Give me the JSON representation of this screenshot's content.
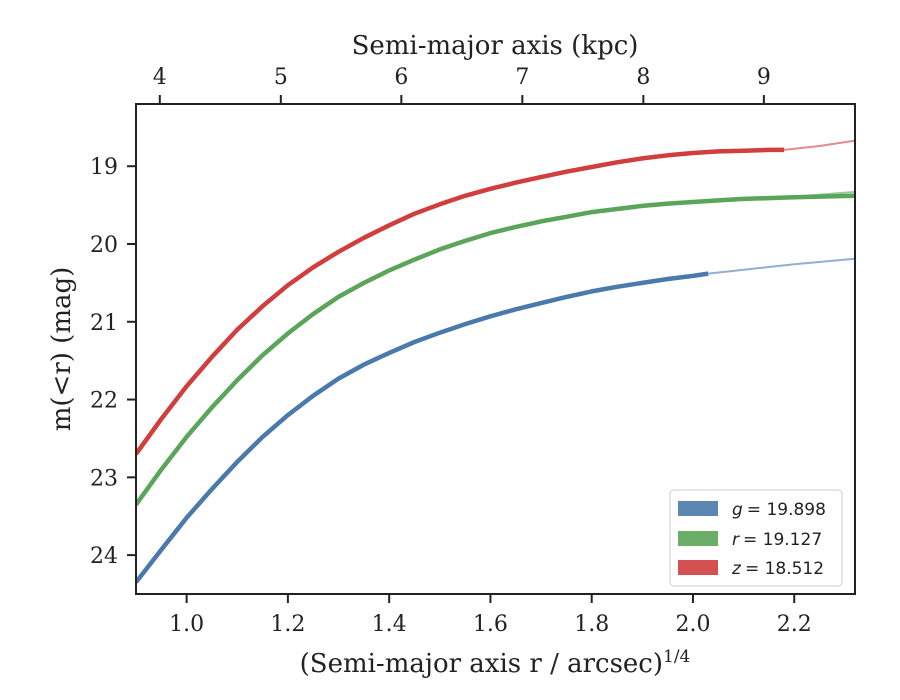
{
  "chart_data": {
    "type": "line",
    "xlabel": "(Semi-major axis r / arcsec)",
    "xlabel_exponent": "1/4",
    "ylabel": "m(<r) (mag)",
    "top_xlabel": "Semi-major axis (kpc)",
    "xlim": [
      0.9,
      2.32
    ],
    "ylim": [
      24.5,
      18.2
    ],
    "y_inverted": true,
    "x_ticks": [
      1.0,
      1.2,
      1.4,
      1.6,
      1.8,
      2.0,
      2.2
    ],
    "x_tick_labels": [
      "1.0",
      "1.2",
      "1.4",
      "1.6",
      "1.8",
      "2.0",
      "2.2"
    ],
    "y_ticks": [
      19,
      20,
      21,
      22,
      23,
      24
    ],
    "y_tick_labels": [
      "19",
      "20",
      "21",
      "22",
      "23",
      "24"
    ],
    "top_ticks": [
      {
        "x": 0.947,
        "label": "4"
      },
      {
        "x": 1.186,
        "label": "5"
      },
      {
        "x": 1.424,
        "label": "6"
      },
      {
        "x": 1.663,
        "label": "7"
      },
      {
        "x": 1.902,
        "label": "8"
      },
      {
        "x": 2.14,
        "label": "9"
      }
    ],
    "legend_position": "bottom-right",
    "series": [
      {
        "name": "g",
        "legend_value": "= 19.898",
        "color": "#4a7aab",
        "x": [
          0.9,
          0.95,
          1.0,
          1.05,
          1.1,
          1.15,
          1.2,
          1.25,
          1.3,
          1.35,
          1.4,
          1.45,
          1.5,
          1.55,
          1.6,
          1.65,
          1.7,
          1.75,
          1.8,
          1.85,
          1.9,
          1.95,
          2.0,
          2.03
        ],
        "y": [
          24.35,
          23.93,
          23.52,
          23.15,
          22.8,
          22.48,
          22.2,
          21.95,
          21.73,
          21.55,
          21.4,
          21.26,
          21.14,
          21.03,
          20.93,
          20.84,
          20.76,
          20.68,
          20.61,
          20.55,
          20.5,
          20.45,
          20.41,
          20.38
        ],
        "extension_x": [
          2.03,
          2.1,
          2.2,
          2.32
        ],
        "extension_y": [
          20.38,
          20.33,
          20.26,
          20.19
        ]
      },
      {
        "name": "r",
        "legend_value": "= 19.127",
        "color": "#5aa55a",
        "x": [
          0.9,
          0.95,
          1.0,
          1.05,
          1.1,
          1.15,
          1.2,
          1.25,
          1.3,
          1.35,
          1.4,
          1.45,
          1.5,
          1.55,
          1.6,
          1.65,
          1.7,
          1.75,
          1.8,
          1.85,
          1.9,
          1.95,
          2.0,
          2.05,
          2.1,
          2.15,
          2.2,
          2.25,
          2.32
        ],
        "y": [
          23.35,
          22.9,
          22.48,
          22.1,
          21.75,
          21.43,
          21.15,
          20.9,
          20.68,
          20.5,
          20.34,
          20.2,
          20.07,
          19.96,
          19.86,
          19.78,
          19.71,
          19.65,
          19.59,
          19.55,
          19.51,
          19.48,
          19.46,
          19.44,
          19.42,
          19.41,
          19.4,
          19.39,
          19.38
        ],
        "extension_x": [
          2.2,
          2.32
        ],
        "extension_y": [
          19.39,
          19.33
        ]
      },
      {
        "name": "z",
        "legend_value": "= 18.512",
        "color": "#d03e3e",
        "x": [
          0.9,
          0.95,
          1.0,
          1.05,
          1.1,
          1.15,
          1.2,
          1.25,
          1.3,
          1.35,
          1.4,
          1.45,
          1.5,
          1.55,
          1.6,
          1.65,
          1.7,
          1.75,
          1.8,
          1.85,
          1.9,
          1.95,
          2.0,
          2.05,
          2.1,
          2.15,
          2.18
        ],
        "y": [
          22.7,
          22.25,
          21.83,
          21.45,
          21.1,
          20.8,
          20.53,
          20.3,
          20.1,
          19.92,
          19.76,
          19.61,
          19.49,
          19.38,
          19.29,
          19.21,
          19.14,
          19.07,
          19.01,
          18.95,
          18.9,
          18.86,
          18.83,
          18.81,
          18.8,
          18.79,
          18.79
        ],
        "extension_x": [
          2.18,
          2.25,
          2.32
        ],
        "extension_y": [
          18.79,
          18.74,
          18.67
        ]
      }
    ]
  }
}
